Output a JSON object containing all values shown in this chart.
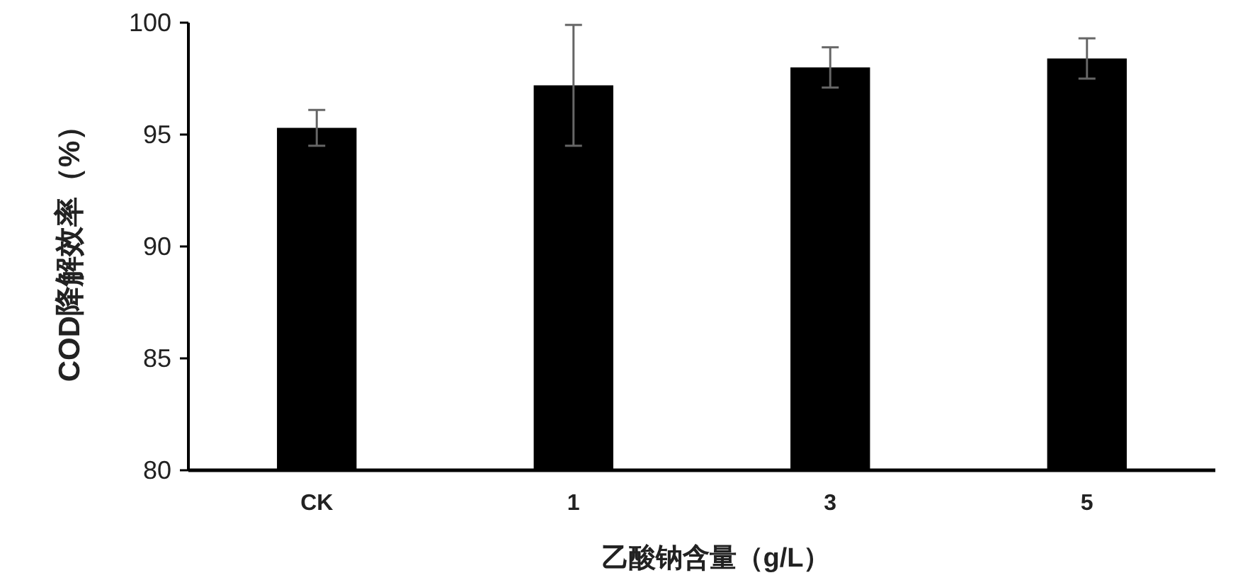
{
  "chart_data": {
    "type": "bar",
    "xlabel": "乙酸钠含量（g/L）",
    "ylabel": "COD降解效率（%）",
    "categories": [
      "CK",
      "1",
      "3",
      "5"
    ],
    "values": [
      95.3,
      97.2,
      98.0,
      98.4
    ],
    "errors": [
      0.8,
      2.7,
      0.9,
      0.9
    ],
    "color": "#000000",
    "ylim": [
      80,
      100
    ],
    "yticks": [
      80,
      85,
      90,
      95,
      100
    ],
    "grid": false
  }
}
